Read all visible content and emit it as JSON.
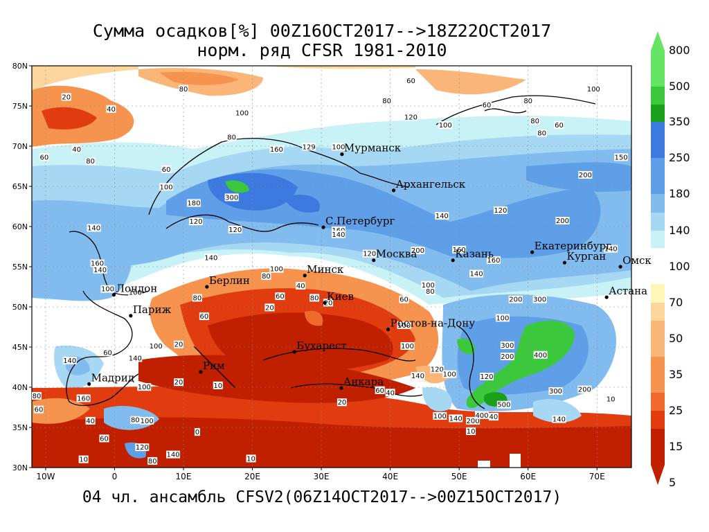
{
  "title_line1": "Сумма осадков[%] 00Z16OCT2017-->18Z22OCT2017",
  "title_line2": "норм. ряд CFSR 1981-2010",
  "subtitle": "04 чл. ансамбль CFSV2(06Z14OCT2017-->00Z15OCT2017)",
  "lat_labels": [
    "80N",
    "75N",
    "70N",
    "65N",
    "60N",
    "55N",
    "50N",
    "45N",
    "40N",
    "35N",
    "30N"
  ],
  "lon_labels": [
    "10W",
    "0",
    "10E",
    "20E",
    "30E",
    "40E",
    "50E",
    "60E",
    "70E"
  ],
  "cities": [
    {
      "name": "Мурманск",
      "lon": 33,
      "lat": 69
    },
    {
      "name": "Архангельск",
      "lon": 40.5,
      "lat": 64.5
    },
    {
      "name": "С.Петербург",
      "lon": 30.3,
      "lat": 59.9
    },
    {
      "name": "Москва",
      "lon": 37.6,
      "lat": 55.8
    },
    {
      "name": "Казань",
      "lon": 49.1,
      "lat": 55.8
    },
    {
      "name": "Екатеринбург",
      "lon": 60.6,
      "lat": 56.8
    },
    {
      "name": "Курган",
      "lon": 65.3,
      "lat": 55.5
    },
    {
      "name": "Омск",
      "lon": 73.4,
      "lat": 55
    },
    {
      "name": "Астана",
      "lon": 71.4,
      "lat": 51.2
    },
    {
      "name": "Минск",
      "lon": 27.6,
      "lat": 53.9
    },
    {
      "name": "Берлин",
      "lon": 13.4,
      "lat": 52.5
    },
    {
      "name": "Лондон",
      "lon": -0.1,
      "lat": 51.5
    },
    {
      "name": "Париж",
      "lon": 2.35,
      "lat": 48.9
    },
    {
      "name": "Киев",
      "lon": 30.5,
      "lat": 50.5
    },
    {
      "name": "Ростов-на-Дону",
      "lon": 39.7,
      "lat": 47.2
    },
    {
      "name": "Бухарест",
      "lon": 26.1,
      "lat": 44.4
    },
    {
      "name": "Рим",
      "lon": 12.5,
      "lat": 41.9
    },
    {
      "name": "Мадрид",
      "lon": -3.7,
      "lat": 40.4
    },
    {
      "name": "Анкара",
      "lon": 32.9,
      "lat": 39.9
    }
  ],
  "contour_labels": [
    {
      "text": "20",
      "lon": -7,
      "lat": 76
    },
    {
      "text": "40",
      "lon": -0.5,
      "lat": 74.5
    },
    {
      "text": "40",
      "lon": -5.5,
      "lat": 69.5
    },
    {
      "text": "60",
      "lon": -10.2,
      "lat": 68.5
    },
    {
      "text": "80",
      "lon": -3.5,
      "lat": 68
    },
    {
      "text": "60",
      "lon": 7.5,
      "lat": 67
    },
    {
      "text": "100",
      "lon": 7.5,
      "lat": 64.8
    },
    {
      "text": "80",
      "lon": 10,
      "lat": 77
    },
    {
      "text": "100",
      "lon": 18.5,
      "lat": 74
    },
    {
      "text": "80",
      "lon": 17,
      "lat": 71
    },
    {
      "text": "80",
      "lon": 39.5,
      "lat": 75.5
    },
    {
      "text": "60",
      "lon": 43,
      "lat": 78
    },
    {
      "text": "120",
      "lon": 43,
      "lat": 73.5
    },
    {
      "text": "100",
      "lon": 48,
      "lat": 72.5
    },
    {
      "text": "60",
      "lon": 54,
      "lat": 75
    },
    {
      "text": "80",
      "lon": 60,
      "lat": 75.5
    },
    {
      "text": "60",
      "lon": 64.5,
      "lat": 72.5
    },
    {
      "text": "100",
      "lon": 69.5,
      "lat": 77
    },
    {
      "text": "80",
      "lon": 61,
      "lat": 73
    },
    {
      "text": "80",
      "lon": 62,
      "lat": 71.5
    },
    {
      "text": "160",
      "lon": 23.5,
      "lat": 69.5
    },
    {
      "text": "129",
      "lon": 28.2,
      "lat": 69.8
    },
    {
      "text": "100",
      "lon": 32.5,
      "lat": 69.8
    },
    {
      "text": "300",
      "lon": 17,
      "lat": 63.5
    },
    {
      "text": "180",
      "lon": 11.5,
      "lat": 62.8
    },
    {
      "text": "120",
      "lon": 11.8,
      "lat": 60.5
    },
    {
      "text": "120",
      "lon": 17.5,
      "lat": 59.5
    },
    {
      "text": "140",
      "lon": -3,
      "lat": 59.7
    },
    {
      "text": "140",
      "lon": 14,
      "lat": 56
    },
    {
      "text": "160",
      "lon": -2.5,
      "lat": 55.3
    },
    {
      "text": "140",
      "lon": -2.1,
      "lat": 54.5
    },
    {
      "text": "100",
      "lon": 3,
      "lat": 51.7
    },
    {
      "text": "80",
      "lon": 12,
      "lat": 51
    },
    {
      "text": "60",
      "lon": 13,
      "lat": 48.7
    },
    {
      "text": "20",
      "lon": 22.5,
      "lat": 49.8
    },
    {
      "text": "80",
      "lon": 29,
      "lat": 51
    },
    {
      "text": "100",
      "lon": 23.5,
      "lat": 54.6
    },
    {
      "text": "80",
      "lon": 22,
      "lat": 53.7
    },
    {
      "text": "40",
      "lon": 27,
      "lat": 52.5
    },
    {
      "text": "60",
      "lon": 24,
      "lat": 51.2
    },
    {
      "text": "160",
      "lon": 32.5,
      "lat": 59.4
    },
    {
      "text": "140",
      "lon": 32.5,
      "lat": 58.9
    },
    {
      "text": "120",
      "lon": 37,
      "lat": 56.5
    },
    {
      "text": "200",
      "lon": 44,
      "lat": 56.9
    },
    {
      "text": "140",
      "lon": 47.5,
      "lat": 61.2
    },
    {
      "text": "160",
      "lon": 50,
      "lat": 57
    },
    {
      "text": "160",
      "lon": 55,
      "lat": 55.7
    },
    {
      "text": "140",
      "lon": 52.5,
      "lat": 54
    },
    {
      "text": "120",
      "lon": 56,
      "lat": 61.9
    },
    {
      "text": "200",
      "lon": 65,
      "lat": 60.6
    },
    {
      "text": "200",
      "lon": 68.3,
      "lat": 66.3
    },
    {
      "text": "150",
      "lon": 73.5,
      "lat": 68.5
    },
    {
      "text": "140",
      "lon": 72,
      "lat": 57.1
    },
    {
      "text": "100",
      "lon": 45.5,
      "lat": 52.6
    },
    {
      "text": "80",
      "lon": 45.8,
      "lat": 51.8
    },
    {
      "text": "60",
      "lon": 42,
      "lat": 50.8
    },
    {
      "text": "100",
      "lon": -1,
      "lat": 52.1
    },
    {
      "text": "140",
      "lon": -6.5,
      "lat": 43.2
    },
    {
      "text": "60",
      "lon": -1,
      "lat": 44.2
    },
    {
      "text": "140",
      "lon": 3,
      "lat": 43.5
    },
    {
      "text": "100",
      "lon": 6,
      "lat": 45
    },
    {
      "text": "20",
      "lon": 9.3,
      "lat": 45.2
    },
    {
      "text": "160",
      "lon": -4.5,
      "lat": 38.5
    },
    {
      "text": "100",
      "lon": 4.3,
      "lat": 39.9
    },
    {
      "text": "20",
      "lon": 9.3,
      "lat": 40.5
    },
    {
      "text": "80",
      "lon": -11.3,
      "lat": 38.8
    },
    {
      "text": "60",
      "lon": -11,
      "lat": 37.1
    },
    {
      "text": "40",
      "lon": -3.5,
      "lat": 35.7
    },
    {
      "text": "80",
      "lon": 3,
      "lat": 35.8
    },
    {
      "text": "100",
      "lon": 4.7,
      "lat": 35.7
    },
    {
      "text": "60",
      "lon": -1.5,
      "lat": 33.5
    },
    {
      "text": "120",
      "lon": 4,
      "lat": 32.4
    },
    {
      "text": "80",
      "lon": 5.5,
      "lat": 30.7
    },
    {
      "text": "140",
      "lon": 8.5,
      "lat": 31.5
    },
    {
      "text": "10",
      "lon": -4.5,
      "lat": 30.9
    },
    {
      "text": "10",
      "lon": 19.8,
      "lat": 31
    },
    {
      "text": "10",
      "lon": 15,
      "lat": 40.1
    },
    {
      "text": "20",
      "lon": 31,
      "lat": 50.4
    },
    {
      "text": "100",
      "lon": 42,
      "lat": 47.6
    },
    {
      "text": "100",
      "lon": 56.3,
      "lat": 48.5
    },
    {
      "text": "100",
      "lon": 42.5,
      "lat": 45
    },
    {
      "text": "300",
      "lon": 57,
      "lat": 45.1
    },
    {
      "text": "200",
      "lon": 57,
      "lat": 43.7
    },
    {
      "text": "400",
      "lon": 61.8,
      "lat": 43.9
    },
    {
      "text": "300",
      "lon": 61.7,
      "lat": 50.8
    },
    {
      "text": "200",
      "lon": 58.2,
      "lat": 50.8
    },
    {
      "text": "120",
      "lon": 54,
      "lat": 41.2
    },
    {
      "text": "120",
      "lon": 46.8,
      "lat": 42.1
    },
    {
      "text": "100",
      "lon": 48.6,
      "lat": 41.5
    },
    {
      "text": "140",
      "lon": 44,
      "lat": 41.3
    },
    {
      "text": "60",
      "lon": 38.5,
      "lat": 39.5
    },
    {
      "text": "40",
      "lon": 40,
      "lat": 39.2
    },
    {
      "text": "20",
      "lon": 33,
      "lat": 38
    },
    {
      "text": "500",
      "lon": 56.5,
      "lat": 37.7
    },
    {
      "text": "100",
      "lon": 47.2,
      "lat": 36.3
    },
    {
      "text": "140",
      "lon": 49.5,
      "lat": 36
    },
    {
      "text": "200",
      "lon": 52,
      "lat": 35.7
    },
    {
      "text": "400",
      "lon": 53.3,
      "lat": 36.4
    },
    {
      "text": "40",
      "lon": 55,
      "lat": 36.2
    },
    {
      "text": "10",
      "lon": 51.7,
      "lat": 34.4
    },
    {
      "text": "140",
      "lon": 64.5,
      "lat": 35.9
    },
    {
      "text": "300",
      "lon": 64,
      "lat": 39.4
    },
    {
      "text": "10",
      "lon": 72,
      "lat": 38.4
    },
    {
      "text": "200",
      "lon": 68.2,
      "lat": 39.6
    },
    {
      "text": "0",
      "lon": 12,
      "lat": 34.3
    }
  ],
  "colorbar": {
    "labels": [
      "800",
      "500",
      "350",
      "250",
      "180",
      "140",
      "100",
      "70",
      "50",
      "35",
      "25",
      "15",
      "5"
    ]
  },
  "colors": {
    "red_deep": "#c02000",
    "red": "#e03c10",
    "orange_red": "#f06a2e",
    "orange": "#f5934f",
    "peach": "#fab578",
    "light_peach": "#fcd69c",
    "pale_yellow": "#fef7b8",
    "white": "#ffffff",
    "pale_cyan": "#c8f2f6",
    "light_blue": "#a6d8f4",
    "mid_blue": "#82bcee",
    "blue": "#5f9fe8",
    "deep_blue": "#3c7ae0",
    "dark_green": "#1aa01a",
    "green": "#3cc83c",
    "light_green": "#64e664"
  }
}
